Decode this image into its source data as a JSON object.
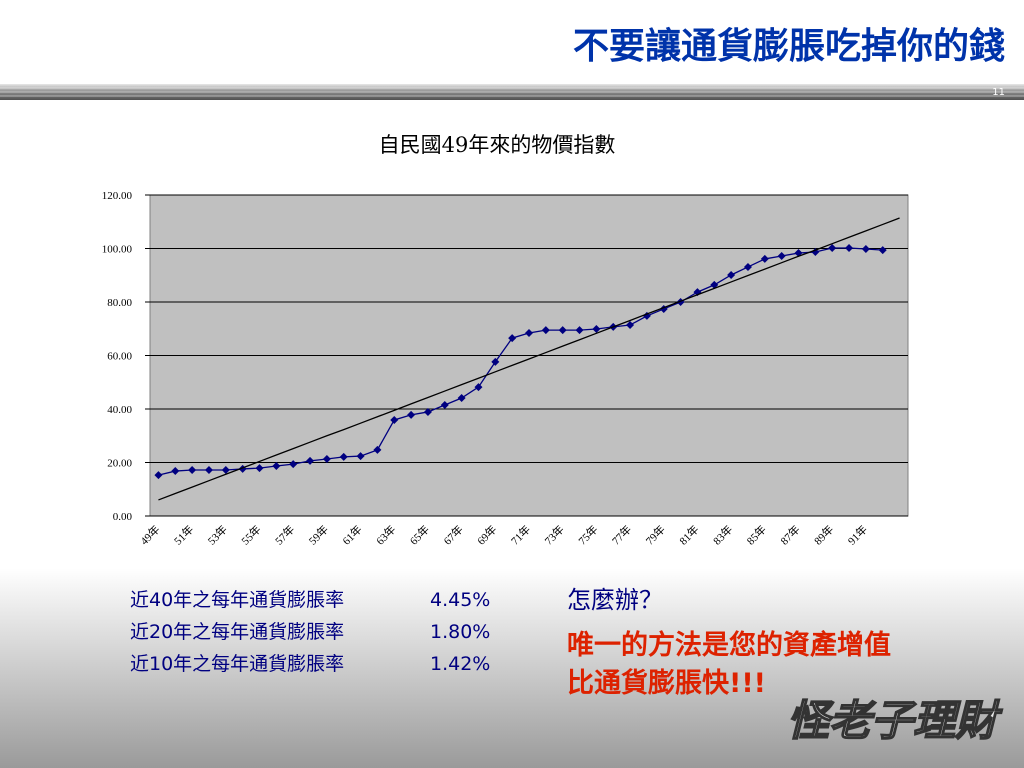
{
  "header": {
    "title": "不要讓通貨膨脹吃掉你的錢",
    "page_number": "11"
  },
  "chart_data": {
    "type": "line",
    "title": "自民國49年來的物價指數",
    "categories": [
      "49年",
      null,
      "51年",
      null,
      "53年",
      null,
      "55年",
      null,
      "57年",
      null,
      "59年",
      null,
      "61年",
      null,
      "63年",
      null,
      "65年",
      null,
      "67年",
      null,
      "69年",
      null,
      "71年",
      null,
      "73年",
      null,
      "75年",
      null,
      "77年",
      null,
      "79年",
      null,
      "81年",
      null,
      "83年",
      null,
      "85年",
      null,
      "87年",
      null,
      "89年",
      null,
      "91年",
      null,
      null
    ],
    "series": [
      {
        "color": "#000080",
        "marker": "diamond",
        "values": [
          15.3,
          16.8,
          17.2,
          17.2,
          17.2,
          17.6,
          17.9,
          18.7,
          19.4,
          20.6,
          21.3,
          22.1,
          22.4,
          24.7,
          35.9,
          37.8,
          38.9,
          41.5,
          44.1,
          48.2,
          57.6,
          66.5,
          68.4,
          69.5,
          69.5,
          69.5,
          69.9,
          70.7,
          71.4,
          74.8,
          77.4,
          80.0,
          83.7,
          86.4,
          90.1,
          93.1,
          96.1,
          97.2,
          98.3,
          98.7,
          100.2,
          100.2,
          99.8,
          99.4,
          null
        ]
      },
      {
        "color": "#000000",
        "marker": "none",
        "values": [
          6.0,
          8.4,
          10.8,
          13.2,
          15.6,
          18.0,
          20.4,
          22.8,
          25.2,
          27.6,
          30.0,
          32.3,
          34.7,
          37.1,
          39.5,
          41.9,
          44.3,
          46.7,
          49.1,
          51.5,
          53.9,
          56.3,
          58.7,
          61.1,
          63.5,
          65.9,
          68.3,
          70.7,
          73.1,
          75.5,
          77.9,
          80.3,
          82.7,
          85.1,
          87.5,
          89.9,
          92.3,
          94.7,
          97.1,
          99.4,
          101.8,
          104.2,
          106.6,
          109.0,
          111.4
        ]
      }
    ],
    "ylim": [
      0,
      120
    ],
    "yticks": [
      {
        "value": 0,
        "label": "0.00"
      },
      {
        "value": 20,
        "label": "20.00"
      },
      {
        "value": 40,
        "label": "40.00"
      },
      {
        "value": 60,
        "label": "60.00"
      },
      {
        "value": 80,
        "label": "80.00"
      },
      {
        "value": 100,
        "label": "100.00"
      },
      {
        "value": 120,
        "label": "120.00"
      }
    ],
    "grid": true,
    "plot_color": "#c0c0c0"
  },
  "stats": [
    {
      "label": "近40年之每年通貨膨脹率",
      "value": "4.45%"
    },
    {
      "label": "近20年之每年通貨膨脹率",
      "value": "1.80%"
    },
    {
      "label": "近10年之每年通貨膨脹率",
      "value": "1.42%"
    }
  ],
  "callout": {
    "question": "怎麼辦？",
    "line1": "唯一的方法是您的資產增值",
    "line2": "比通貨膨脹快",
    "emphasis": "!!!"
  },
  "logo": "怪老子理財"
}
